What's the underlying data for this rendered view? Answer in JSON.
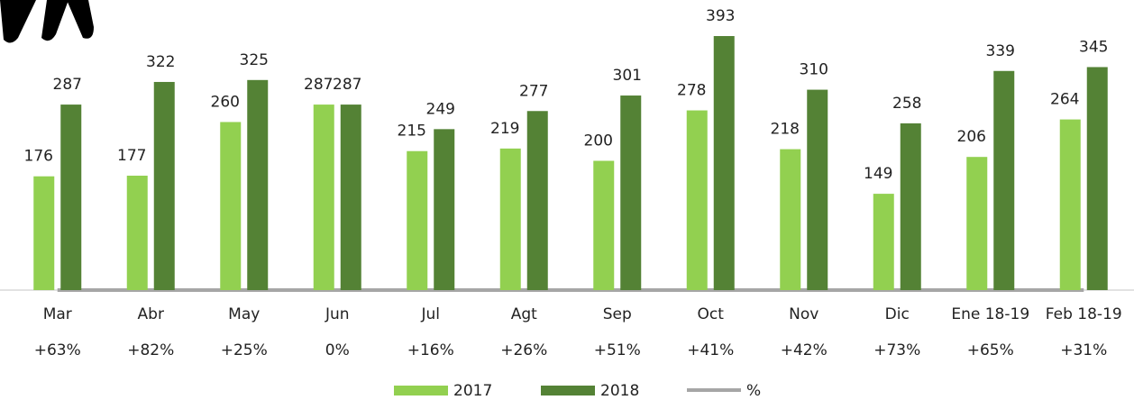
{
  "chart_data": {
    "type": "bar",
    "categories": [
      "Mar",
      "Abr",
      "May",
      "Jun",
      "Jul",
      "Agt",
      "Sep",
      "Oct",
      "Nov",
      "Dic",
      "Ene 18-19",
      "Feb 18-19"
    ],
    "series": [
      {
        "name": "2017",
        "color": "#92d050",
        "values": [
          176,
          177,
          260,
          287,
          215,
          219,
          200,
          278,
          218,
          149,
          206,
          264
        ]
      },
      {
        "name": "2018",
        "color": "#548235",
        "values": [
          287,
          322,
          325,
          287,
          249,
          277,
          301,
          393,
          310,
          258,
          339,
          345
        ]
      },
      {
        "name": "%",
        "color": "#a6a6a6",
        "values": [
          63,
          82,
          25,
          0,
          16,
          26,
          51,
          41,
          42,
          73,
          65,
          31
        ],
        "value_labels": [
          "+63%",
          "+82%",
          "+25%",
          "0%",
          "+16%",
          "+26%",
          "+51%",
          "+41%",
          "+42%",
          "+73%",
          "+65%",
          "+31%"
        ]
      }
    ],
    "ylim": [
      0,
      400
    ],
    "legend": "bottom"
  }
}
